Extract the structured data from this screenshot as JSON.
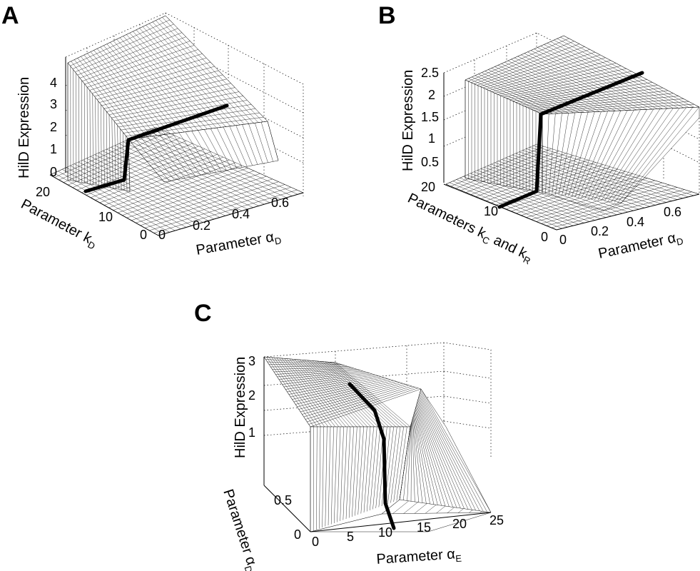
{
  "chart_data": [
    {
      "type": "surface",
      "panel_label": "A",
      "zlabel": "HilD Expression",
      "xlabel_main": "Parameter α",
      "xlabel_sub": "D",
      "ylabel_main": "Parameter k",
      "ylabel_sub": "D",
      "x_ticks": [
        "0",
        "0.2",
        "0.4",
        "0.6"
      ],
      "y_ticks": [
        "0",
        "10",
        "20"
      ],
      "z_ticks": [
        "0",
        "1",
        "2",
        "3",
        "4"
      ],
      "xlim": [
        0,
        0.7
      ],
      "ylim": [
        0,
        25
      ],
      "zlim": [
        0,
        4.5
      ],
      "surface": {
        "high_plateau": 4.5,
        "low_value": 0,
        "transition_x": 0.3,
        "decay_start": 0.35
      },
      "highlight_line": {
        "y": 12,
        "description": "thick black curve"
      }
    },
    {
      "type": "surface",
      "panel_label": "B",
      "zlabel": "HilD Expression",
      "xlabel_main": "Parameter α",
      "xlabel_sub": "D",
      "ylabel_main": "Parameters k",
      "ylabel_sub1": "C",
      "ylabel_mid": " and k",
      "ylabel_sub2": "R",
      "x_ticks": [
        "0",
        "0.2",
        "0.4",
        "0.6"
      ],
      "y_ticks": [
        "0",
        "10",
        "20"
      ],
      "z_ticks": [
        "0.5",
        "1",
        "1.5",
        "2",
        "2.5"
      ],
      "xlim": [
        0,
        0.7
      ],
      "ylim": [
        0,
        20
      ],
      "zlim": [
        0,
        2.5
      ],
      "surface": {
        "high_plateau": 2.5,
        "low_value": 0,
        "transition_x": 0.28
      },
      "highlight_line": {
        "y": 8,
        "description": "thick black curve"
      }
    },
    {
      "type": "surface",
      "panel_label": "C",
      "zlabel": "HilD Expression",
      "xlabel_main": "Parameter α",
      "xlabel_sub": "E",
      "ylabel_main": "Parameter α",
      "ylabel_sub": "D",
      "x_ticks": [
        "0",
        "5",
        "10",
        "15",
        "20",
        "25"
      ],
      "y_ticks": [
        "0",
        "0.5"
      ],
      "z_ticks": [
        "1",
        "2",
        "3"
      ],
      "xlim": [
        0,
        25
      ],
      "ylim": [
        0,
        1
      ],
      "zlim": [
        0,
        3
      ],
      "surface": {
        "high_plateau": 3,
        "low_value": 0,
        "transition_x": 10
      },
      "highlight_line": {
        "x": 10,
        "description": "thick black curve"
      }
    }
  ]
}
